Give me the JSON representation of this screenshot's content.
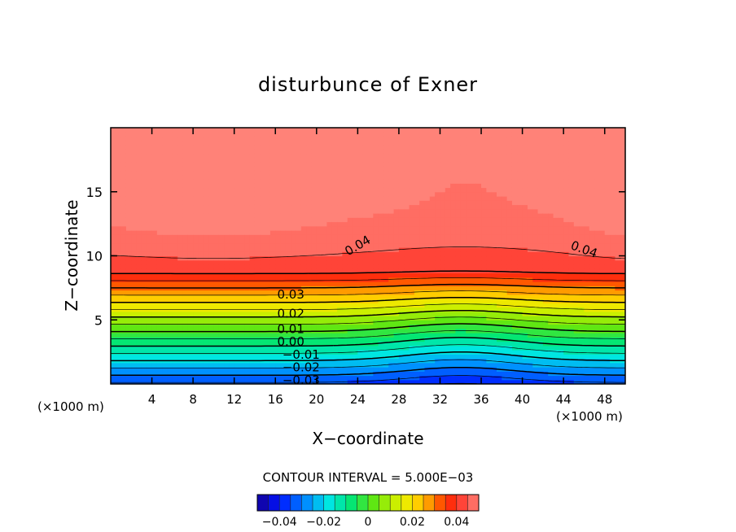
{
  "chart_data": {
    "type": "contour",
    "title": "disturbunce of Exner",
    "xlabel": "X−coordinate",
    "ylabel": "Z−coordinate",
    "x_unit": "(×1000 m)",
    "y_unit": "(×1000 m)",
    "xlim": [
      0,
      50
    ],
    "ylim": [
      0,
      20
    ],
    "x_ticks": [
      4,
      8,
      12,
      16,
      20,
      24,
      28,
      32,
      36,
      40,
      44,
      48
    ],
    "x_tick_labels": [
      "4",
      "8",
      "12",
      "16",
      "20",
      "24",
      "28",
      "32",
      "36",
      "40",
      "44",
      "48"
    ],
    "y_ticks": [
      5,
      10,
      15
    ],
    "y_tick_labels": [
      "5",
      "10",
      "15"
    ],
    "contour_interval_text": "CONTOUR INTERVAL = 5.000E−03",
    "contour_interval": 0.005,
    "contour_labels": [
      {
        "text": "0.04",
        "x": 24,
        "z": 10.8,
        "angle": -30
      },
      {
        "text": "0.04",
        "x": 46,
        "z": 10.5,
        "angle": 20
      },
      {
        "text": "0.03",
        "x": 17.5,
        "z": 7.0,
        "angle": 0
      },
      {
        "text": "0.02",
        "x": 17.5,
        "z": 5.5,
        "angle": 0
      },
      {
        "text": "0.01",
        "x": 17.5,
        "z": 4.3,
        "angle": 0
      },
      {
        "text": "0.00",
        "x": 17.5,
        "z": 3.3,
        "angle": 0
      },
      {
        "text": "−0.01",
        "x": 18.5,
        "z": 2.3,
        "angle": 0
      },
      {
        "text": "−0.02",
        "x": 18.5,
        "z": 1.3,
        "angle": 0
      },
      {
        "text": "−0.03",
        "x": 18.5,
        "z": 0.3,
        "angle": 0
      }
    ],
    "colorbar": {
      "range": [
        -0.05,
        0.05
      ],
      "ticks": [
        -0.04,
        -0.02,
        0,
        0.02,
        0.04
      ],
      "tick_labels": [
        "−0.04",
        "−0.02",
        "0",
        "0.02",
        "0.04"
      ]
    }
  }
}
